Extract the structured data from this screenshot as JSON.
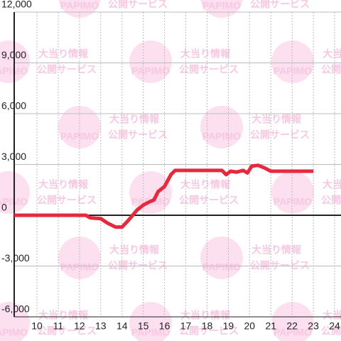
{
  "chart_data": {
    "type": "line",
    "watermark": {
      "logo": "PAPIMO",
      "line1": "大当り情報",
      "line2": "公開サービス"
    },
    "x": [
      8.93,
      12.3,
      12.5,
      13,
      13.3,
      13.7,
      14,
      14.3,
      14.7,
      15,
      15.3,
      15.5,
      15.7,
      16,
      16.3,
      16.5,
      17,
      18,
      18.7,
      18.9,
      19.1,
      19.4,
      19.7,
      19.9,
      20.1,
      20.4,
      20.7,
      21,
      22,
      23
    ],
    "series": [
      {
        "color": "#e8283c",
        "values": [
          0,
          0,
          -150,
          -200,
          -450,
          -700,
          -700,
          -300,
          300,
          600,
          800,
          900,
          1400,
          1700,
          2400,
          2650,
          2650,
          2650,
          2650,
          2400,
          2600,
          2550,
          2650,
          2500,
          2900,
          2950,
          2800,
          2600,
          2600,
          2600
        ]
      }
    ],
    "xlim": [
      8.93,
      24.3
    ],
    "xticks": [
      10,
      11,
      12,
      13,
      14,
      15,
      16,
      17,
      18,
      19,
      20,
      21,
      22,
      23,
      24
    ],
    "ylim": [
      -6000,
      12000
    ],
    "yticks": [
      {
        "value": -6000,
        "label": "-6,000"
      },
      {
        "value": -3000,
        "label": "-3,000"
      },
      0,
      {
        "value": 3000,
        "label": "3,000"
      },
      {
        "value": 6000,
        "label": "6,000"
      },
      {
        "value": 9000,
        "label": "9,000"
      },
      {
        "value": 12000,
        "label": "12,000"
      }
    ],
    "grid": true
  }
}
